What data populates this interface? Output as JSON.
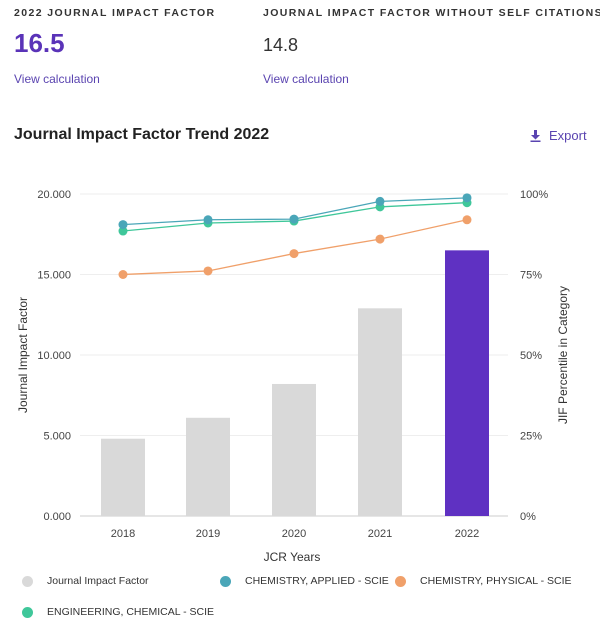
{
  "metrics": {
    "jif": {
      "label": "2022 JOURNAL IMPACT FACTOR",
      "value": "16.5",
      "link": "View calculation"
    },
    "jif_no_self": {
      "label": "JOURNAL IMPACT FACTOR WITHOUT SELF CITATIONS",
      "value": "14.8",
      "link": "View calculation"
    }
  },
  "chart_header": {
    "title": "Journal Impact Factor Trend 2022",
    "export_label": "Export"
  },
  "colors": {
    "bar": "#d9d9d9",
    "bar_highlight": "#5f31c2",
    "applied": "#4aa6b8",
    "physical": "#f0a06a",
    "engineering": "#3fc79a"
  },
  "chart_data": {
    "type": "bar",
    "title": "Journal Impact Factor Trend 2022",
    "categories": [
      "2018",
      "2019",
      "2020",
      "2021",
      "2022"
    ],
    "xlabel": "JCR Years",
    "ylabel": "Journal Impact Factor",
    "y2label": "JIF Percentile in Category",
    "ylim": [
      0,
      20
    ],
    "y_ticks": [
      "0.000",
      "5.000",
      "10.000",
      "15.000",
      "20.000"
    ],
    "y2lim": [
      0,
      100
    ],
    "y2_ticks": [
      "0%",
      "25%",
      "50%",
      "75%",
      "100%"
    ],
    "bar_series": {
      "name": "Journal Impact Factor",
      "values": [
        4.8,
        6.1,
        8.2,
        12.9,
        16.5
      ],
      "highlight_index": 4
    },
    "percentile_series": [
      {
        "name": "CHEMISTRY, APPLIED - SCIE",
        "color_key": "applied",
        "values": [
          90.5,
          92.0,
          92.2,
          97.7,
          98.8
        ]
      },
      {
        "name": "CHEMISTRY, PHYSICAL - SCIE",
        "color_key": "physical",
        "values": [
          75.0,
          76.1,
          81.5,
          86.0,
          92.0
        ]
      },
      {
        "name": "ENGINEERING, CHEMICAL - SCIE",
        "color_key": "engineering",
        "values": [
          88.5,
          91.0,
          91.6,
          96.0,
          97.3
        ]
      }
    ],
    "legend_position": "bottom"
  }
}
